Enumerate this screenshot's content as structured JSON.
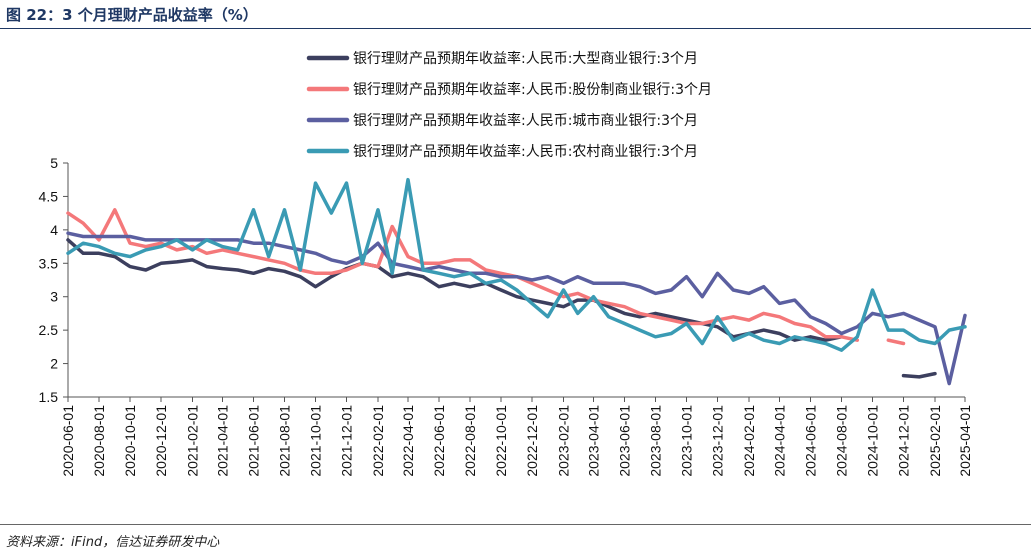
{
  "header": {
    "title": "图 22：3 个月理财产品收益率（%）"
  },
  "footer": {
    "source": "资料来源：iFind，信达证券研发中心"
  },
  "chart_data": {
    "type": "line",
    "title": "",
    "xlabel": "",
    "ylabel": "",
    "ylim": [
      1.5,
      5
    ],
    "yticks": [
      "5",
      "4.5",
      "4",
      "3.5",
      "3",
      "2.5",
      "2",
      "1.5"
    ],
    "xticks": [
      "2020-06-01",
      "2020-08-01",
      "2020-10-01",
      "2020-12-01",
      "2021-02-01",
      "2021-04-01",
      "2021-06-01",
      "2021-08-01",
      "2021-10-01",
      "2021-12-01",
      "2022-02-01",
      "2022-04-01",
      "2022-06-01",
      "2022-08-01",
      "2022-10-01",
      "2022-12-01",
      "2023-02-01",
      "2023-04-01",
      "2023-06-01",
      "2023-08-01",
      "2023-10-01",
      "2023-12-01",
      "2024-02-01",
      "2024-04-01",
      "2024-06-01",
      "2024-08-01",
      "2024-10-01",
      "2024-12-01",
      "2025-02-01",
      "2025-04-01"
    ],
    "legend_position": "top-right",
    "grid": false,
    "colors": [
      "#3c3f5e",
      "#f4787a",
      "#5b5fa0",
      "#3a9bb4"
    ],
    "series": [
      {
        "name": "银行理财产品预期年收益率:人民币:大型商业银行:3个月",
        "points": [
          [
            "2020-06-01",
            3.85
          ],
          [
            "2020-07-01",
            3.65
          ],
          [
            "2020-08-01",
            3.65
          ],
          [
            "2020-09-01",
            3.6
          ],
          [
            "2020-10-01",
            3.45
          ],
          [
            "2020-11-01",
            3.4
          ],
          [
            "2020-12-01",
            3.5
          ],
          [
            "2021-01-01",
            3.52
          ],
          [
            "2021-02-01",
            3.55
          ],
          [
            "2021-03-01",
            3.45
          ],
          [
            "2021-04-01",
            3.42
          ],
          [
            "2021-05-01",
            3.4
          ],
          [
            "2021-06-01",
            3.35
          ],
          [
            "2021-07-01",
            3.42
          ],
          [
            "2021-08-01",
            3.38
          ],
          [
            "2021-09-01",
            3.3
          ],
          [
            "2021-10-01",
            3.15
          ],
          [
            "2021-11-01",
            3.3
          ],
          [
            "2021-12-01",
            3.42
          ],
          [
            "2022-01-01",
            3.5
          ],
          [
            "2022-02-01",
            3.45
          ],
          [
            "2022-03-01",
            3.3
          ],
          [
            "2022-04-01",
            3.35
          ],
          [
            "2022-05-01",
            3.3
          ],
          [
            "2022-06-01",
            3.15
          ],
          [
            "2022-07-01",
            3.2
          ],
          [
            "2022-08-01",
            3.15
          ],
          [
            "2022-09-01",
            3.2
          ],
          [
            "2022-10-01",
            3.1
          ],
          [
            "2022-11-01",
            3.0
          ],
          [
            "2022-12-01",
            2.95
          ],
          [
            "2023-01-01",
            2.9
          ],
          [
            "2023-02-01",
            2.85
          ],
          [
            "2023-03-01",
            2.95
          ],
          [
            "2023-04-01",
            2.95
          ],
          [
            "2023-05-01",
            2.85
          ],
          [
            "2023-06-01",
            2.75
          ],
          [
            "2023-07-01",
            2.7
          ],
          [
            "2023-08-01",
            2.75
          ],
          [
            "2023-09-01",
            2.7
          ],
          [
            "2023-10-01",
            2.65
          ],
          [
            "2023-11-01",
            2.6
          ],
          [
            "2023-12-01",
            2.55
          ],
          [
            "2024-01-01",
            2.4
          ],
          [
            "2024-02-01",
            2.45
          ],
          [
            "2024-03-01",
            2.5
          ],
          [
            "2024-04-01",
            2.45
          ],
          [
            "2024-05-01",
            2.35
          ],
          [
            "2024-06-01",
            2.4
          ],
          [
            "2024-07-01",
            2.35
          ],
          [
            "2024-08-01",
            2.4
          ],
          [
            "2024-12-01",
            1.82
          ],
          [
            "2025-01-01",
            1.8
          ],
          [
            "2025-02-01",
            1.85
          ]
        ]
      },
      {
        "name": "银行理财产品预期年收益率:人民币:股份制商业银行:3个月",
        "points": [
          [
            "2020-06-01",
            4.25
          ],
          [
            "2020-07-01",
            4.1
          ],
          [
            "2020-08-01",
            3.85
          ],
          [
            "2020-09-01",
            4.3
          ],
          [
            "2020-10-01",
            3.8
          ],
          [
            "2020-11-01",
            3.75
          ],
          [
            "2020-12-01",
            3.8
          ],
          [
            "2021-01-01",
            3.7
          ],
          [
            "2021-02-01",
            3.75
          ],
          [
            "2021-03-01",
            3.65
          ],
          [
            "2021-04-01",
            3.7
          ],
          [
            "2021-05-01",
            3.65
          ],
          [
            "2021-06-01",
            3.6
          ],
          [
            "2021-07-01",
            3.55
          ],
          [
            "2021-08-01",
            3.5
          ],
          [
            "2021-09-01",
            3.4
          ],
          [
            "2021-10-01",
            3.35
          ],
          [
            "2021-11-01",
            3.35
          ],
          [
            "2021-12-01",
            3.4
          ],
          [
            "2022-01-01",
            3.5
          ],
          [
            "2022-02-01",
            3.45
          ],
          [
            "2022-03-01",
            4.05
          ],
          [
            "2022-04-01",
            3.6
          ],
          [
            "2022-05-01",
            3.5
          ],
          [
            "2022-06-01",
            3.5
          ],
          [
            "2022-07-01",
            3.55
          ],
          [
            "2022-08-01",
            3.55
          ],
          [
            "2022-09-01",
            3.4
          ],
          [
            "2022-10-01",
            3.35
          ],
          [
            "2022-11-01",
            3.3
          ],
          [
            "2022-12-01",
            3.2
          ],
          [
            "2023-01-01",
            3.1
          ],
          [
            "2023-02-01",
            3.0
          ],
          [
            "2023-03-01",
            3.05
          ],
          [
            "2023-04-01",
            2.95
          ],
          [
            "2023-05-01",
            2.9
          ],
          [
            "2023-06-01",
            2.85
          ],
          [
            "2023-07-01",
            2.75
          ],
          [
            "2023-08-01",
            2.7
          ],
          [
            "2023-09-01",
            2.65
          ],
          [
            "2023-10-01",
            2.6
          ],
          [
            "2023-11-01",
            2.6
          ],
          [
            "2023-12-01",
            2.65
          ],
          [
            "2024-01-01",
            2.7
          ],
          [
            "2024-02-01",
            2.65
          ],
          [
            "2024-03-01",
            2.75
          ],
          [
            "2024-04-01",
            2.7
          ],
          [
            "2024-05-01",
            2.6
          ],
          [
            "2024-06-01",
            2.55
          ],
          [
            "2024-07-01",
            2.4
          ],
          [
            "2024-08-01",
            2.4
          ],
          [
            "2024-09-01",
            2.35
          ],
          [
            "2024-11-01",
            2.35
          ],
          [
            "2024-12-01",
            2.3
          ]
        ]
      },
      {
        "name": "银行理财产品预期年收益率:人民币:城市商业银行:3个月",
        "points": [
          [
            "2020-06-01",
            3.95
          ],
          [
            "2020-07-01",
            3.9
          ],
          [
            "2020-08-01",
            3.9
          ],
          [
            "2020-09-01",
            3.9
          ],
          [
            "2020-10-01",
            3.9
          ],
          [
            "2020-11-01",
            3.85
          ],
          [
            "2020-12-01",
            3.85
          ],
          [
            "2021-01-01",
            3.85
          ],
          [
            "2021-02-01",
            3.85
          ],
          [
            "2021-03-01",
            3.85
          ],
          [
            "2021-04-01",
            3.85
          ],
          [
            "2021-05-01",
            3.85
          ],
          [
            "2021-06-01",
            3.8
          ],
          [
            "2021-07-01",
            3.8
          ],
          [
            "2021-08-01",
            3.75
          ],
          [
            "2021-09-01",
            3.7
          ],
          [
            "2021-10-01",
            3.65
          ],
          [
            "2021-11-01",
            3.55
          ],
          [
            "2021-12-01",
            3.5
          ],
          [
            "2022-01-01",
            3.6
          ],
          [
            "2022-02-01",
            3.8
          ],
          [
            "2022-03-01",
            3.5
          ],
          [
            "2022-04-01",
            3.45
          ],
          [
            "2022-05-01",
            3.4
          ],
          [
            "2022-06-01",
            3.45
          ],
          [
            "2022-07-01",
            3.4
          ],
          [
            "2022-08-01",
            3.35
          ],
          [
            "2022-09-01",
            3.35
          ],
          [
            "2022-10-01",
            3.3
          ],
          [
            "2022-11-01",
            3.3
          ],
          [
            "2022-12-01",
            3.25
          ],
          [
            "2023-01-01",
            3.3
          ],
          [
            "2023-02-01",
            3.2
          ],
          [
            "2023-03-01",
            3.3
          ],
          [
            "2023-04-01",
            3.2
          ],
          [
            "2023-05-01",
            3.2
          ],
          [
            "2023-06-01",
            3.2
          ],
          [
            "2023-07-01",
            3.15
          ],
          [
            "2023-08-01",
            3.05
          ],
          [
            "2023-09-01",
            3.1
          ],
          [
            "2023-10-01",
            3.3
          ],
          [
            "2023-11-01",
            3.0
          ],
          [
            "2023-12-01",
            3.35
          ],
          [
            "2024-01-01",
            3.1
          ],
          [
            "2024-02-01",
            3.05
          ],
          [
            "2024-03-01",
            3.15
          ],
          [
            "2024-04-01",
            2.9
          ],
          [
            "2024-05-01",
            2.95
          ],
          [
            "2024-06-01",
            2.7
          ],
          [
            "2024-07-01",
            2.6
          ],
          [
            "2024-08-01",
            2.45
          ],
          [
            "2024-09-01",
            2.55
          ],
          [
            "2024-10-01",
            2.75
          ],
          [
            "2024-11-01",
            2.7
          ],
          [
            "2024-12-01",
            2.75
          ],
          [
            "2025-01-01",
            2.65
          ],
          [
            "2025-02-01",
            2.55
          ],
          [
            "2025-03-01",
            1.7
          ],
          [
            "2025-04-01",
            2.72
          ]
        ]
      },
      {
        "name": "银行理财产品预期年收益率:人民币:农村商业银行:3个月",
        "points": [
          [
            "2020-06-01",
            3.65
          ],
          [
            "2020-07-01",
            3.8
          ],
          [
            "2020-08-01",
            3.75
          ],
          [
            "2020-09-01",
            3.65
          ],
          [
            "2020-10-01",
            3.6
          ],
          [
            "2020-11-01",
            3.7
          ],
          [
            "2020-12-01",
            3.75
          ],
          [
            "2021-01-01",
            3.85
          ],
          [
            "2021-02-01",
            3.7
          ],
          [
            "2021-03-01",
            3.85
          ],
          [
            "2021-04-01",
            3.75
          ],
          [
            "2021-05-01",
            3.7
          ],
          [
            "2021-06-01",
            4.3
          ],
          [
            "2021-07-01",
            3.6
          ],
          [
            "2021-08-01",
            4.3
          ],
          [
            "2021-09-01",
            3.4
          ],
          [
            "2021-10-01",
            4.7
          ],
          [
            "2021-11-01",
            4.25
          ],
          [
            "2021-12-01",
            4.7
          ],
          [
            "2022-01-01",
            3.5
          ],
          [
            "2022-02-01",
            4.3
          ],
          [
            "2022-03-01",
            3.35
          ],
          [
            "2022-04-01",
            4.75
          ],
          [
            "2022-05-01",
            3.4
          ],
          [
            "2022-06-01",
            3.35
          ],
          [
            "2022-07-01",
            3.3
          ],
          [
            "2022-08-01",
            3.35
          ],
          [
            "2022-09-01",
            3.2
          ],
          [
            "2022-10-01",
            3.25
          ],
          [
            "2022-11-01",
            3.1
          ],
          [
            "2022-12-01",
            2.9
          ],
          [
            "2023-01-01",
            2.7
          ],
          [
            "2023-02-01",
            3.1
          ],
          [
            "2023-03-01",
            2.75
          ],
          [
            "2023-04-01",
            3.0
          ],
          [
            "2023-05-01",
            2.7
          ],
          [
            "2023-06-01",
            2.6
          ],
          [
            "2023-07-01",
            2.5
          ],
          [
            "2023-08-01",
            2.4
          ],
          [
            "2023-09-01",
            2.45
          ],
          [
            "2023-10-01",
            2.6
          ],
          [
            "2023-11-01",
            2.3
          ],
          [
            "2023-12-01",
            2.7
          ],
          [
            "2024-01-01",
            2.35
          ],
          [
            "2024-02-01",
            2.45
          ],
          [
            "2024-03-01",
            2.35
          ],
          [
            "2024-04-01",
            2.3
          ],
          [
            "2024-05-01",
            2.4
          ],
          [
            "2024-06-01",
            2.35
          ],
          [
            "2024-07-01",
            2.3
          ],
          [
            "2024-08-01",
            2.2
          ],
          [
            "2024-09-01",
            2.4
          ],
          [
            "2024-10-01",
            3.1
          ],
          [
            "2024-11-01",
            2.5
          ],
          [
            "2024-12-01",
            2.5
          ],
          [
            "2025-01-01",
            2.35
          ],
          [
            "2025-02-01",
            2.3
          ],
          [
            "2025-03-01",
            2.5
          ],
          [
            "2025-04-01",
            2.55
          ]
        ]
      }
    ]
  }
}
